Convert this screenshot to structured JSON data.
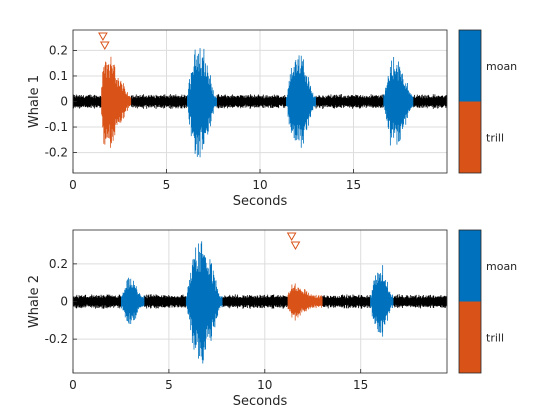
{
  "colors": {
    "background": "#000000",
    "moan": "#0072BD",
    "trill": "#D95319",
    "grid": "#dddddd",
    "axis": "#262626"
  },
  "chart_data": [
    {
      "type": "line",
      "title": "",
      "ylabel": "Whale 1",
      "xlabel": "Seconds",
      "xlim": [
        0,
        20
      ],
      "ylim": [
        -0.28,
        0.28
      ],
      "xticks": [
        0,
        5,
        10,
        15
      ],
      "yticks": [
        -0.2,
        -0.1,
        0,
        0.1,
        0.2
      ],
      "ytick_labels": [
        "-0.2",
        "-0.1",
        "0",
        "0.1",
        "0.2"
      ],
      "grid": true,
      "noise_amplitude": 0.03,
      "segments": [
        {
          "label": "trill",
          "start": 1.5,
          "end": 3.1,
          "peak": 0.27,
          "shape": "decay",
          "marker_x": [
            1.6,
            1.7
          ]
        },
        {
          "label": "moan",
          "start": 6.1,
          "end": 7.7,
          "peak": 0.27,
          "shape": "swell"
        },
        {
          "label": "moan",
          "start": 11.4,
          "end": 13.0,
          "peak": 0.22,
          "shape": "swell"
        },
        {
          "label": "moan",
          "start": 16.6,
          "end": 18.2,
          "peak": 0.21,
          "shape": "swell"
        }
      ],
      "colorbar": {
        "labels": [
          "moan",
          "trill"
        ]
      }
    },
    {
      "type": "line",
      "title": "",
      "ylabel": "Whale 2",
      "xlabel": "Seconds",
      "xlim": [
        0,
        19.5
      ],
      "ylim": [
        -0.38,
        0.38
      ],
      "xticks": [
        0,
        5,
        10,
        15
      ],
      "yticks": [
        -0.2,
        0,
        0.2
      ],
      "ytick_labels": [
        "-0.2",
        "0",
        "0.2"
      ],
      "grid": true,
      "noise_amplitude": 0.04,
      "segments": [
        {
          "label": "moan",
          "start": 2.5,
          "end": 3.7,
          "peak": 0.14,
          "shape": "swell"
        },
        {
          "label": "moan",
          "start": 5.9,
          "end": 7.8,
          "peak": 0.37,
          "shape": "swell"
        },
        {
          "label": "trill",
          "start": 11.2,
          "end": 13.0,
          "peak": 0.13,
          "shape": "decay",
          "marker_x": [
            11.4,
            11.6
          ]
        },
        {
          "label": "moan",
          "start": 15.5,
          "end": 16.7,
          "peak": 0.23,
          "shape": "swell"
        }
      ],
      "colorbar": {
        "labels": [
          "moan",
          "trill"
        ]
      }
    }
  ]
}
